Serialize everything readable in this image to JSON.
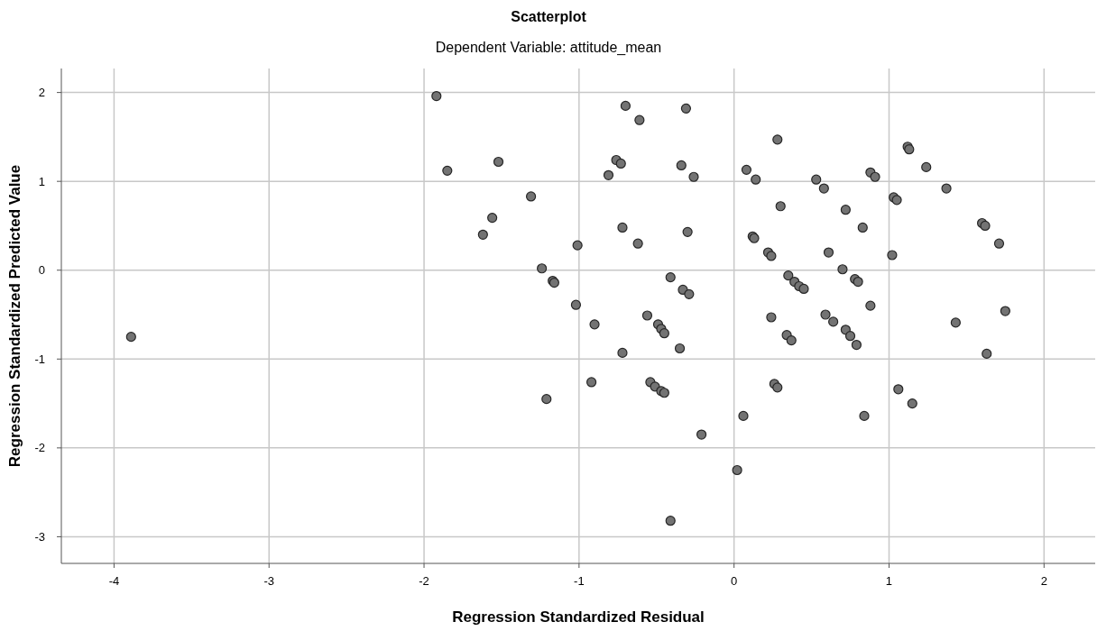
{
  "chart_data": {
    "type": "scatter",
    "title": "Scatterplot",
    "subtitle": "Dependent Variable: attitude_mean",
    "xlabel": "Regression Standardized Residual",
    "ylabel": "Regression Standardized Predicted Value",
    "xlim": [
      -4.34,
      2.33
    ],
    "ylim": [
      -3.3,
      2.27
    ],
    "xticks": [
      -4,
      -3,
      -2,
      -1,
      0,
      1,
      2
    ],
    "yticks": [
      -3,
      -2,
      -1,
      0,
      1,
      2
    ],
    "grid": true,
    "marker": "circle",
    "series": [
      {
        "color": "#737373",
        "x": [
          -3.89,
          -1.92,
          -1.85,
          -1.52,
          -1.56,
          -1.62,
          -1.31,
          -1.24,
          -1.17,
          -1.16,
          -1.21,
          -1.01,
          -1.02,
          -0.9,
          -0.92,
          -0.7,
          -0.61,
          -0.76,
          -0.73,
          -0.81,
          -0.72,
          -0.62,
          -0.72,
          -0.56,
          -0.54,
          -0.51,
          -0.49,
          -0.47,
          -0.45,
          -0.47,
          -0.45,
          -0.41,
          -0.41,
          -0.31,
          -0.34,
          -0.26,
          -0.3,
          -0.33,
          -0.29,
          -0.35,
          -0.21,
          0.02,
          0.06,
          0.08,
          0.14,
          0.12,
          0.13,
          0.24,
          0.26,
          0.28,
          0.22,
          0.24,
          0.28,
          0.3,
          0.35,
          0.34,
          0.37,
          0.39,
          0.42,
          0.45,
          0.53,
          0.58,
          0.61,
          0.59,
          0.64,
          0.72,
          0.75,
          0.72,
          0.7,
          0.78,
          0.8,
          0.79,
          0.83,
          0.84,
          0.88,
          0.88,
          0.91,
          1.02,
          1.03,
          1.05,
          1.06,
          1.12,
          1.13,
          1.15,
          1.24,
          1.37,
          1.43,
          1.6,
          1.62,
          1.63,
          1.71,
          1.75
        ],
        "values": [
          -0.75,
          1.96,
          1.12,
          1.22,
          0.59,
          0.4,
          0.83,
          0.02,
          -0.12,
          -0.14,
          -1.45,
          0.28,
          -0.39,
          -0.61,
          -1.26,
          1.85,
          1.69,
          1.24,
          1.2,
          1.07,
          0.48,
          0.3,
          -0.93,
          -0.51,
          -1.26,
          -1.31,
          -0.61,
          -0.66,
          -0.71,
          -1.36,
          -1.38,
          -2.82,
          -0.08,
          1.82,
          1.18,
          1.05,
          0.43,
          -0.22,
          -0.27,
          -0.88,
          -1.85,
          -2.25,
          -1.64,
          1.13,
          1.02,
          0.38,
          0.36,
          -0.53,
          -1.28,
          -1.32,
          0.2,
          0.16,
          1.47,
          0.72,
          -0.06,
          -0.73,
          -0.79,
          -0.13,
          -0.18,
          -0.21,
          1.02,
          0.92,
          0.2,
          -0.5,
          -0.58,
          -0.67,
          -0.74,
          0.68,
          0.01,
          -0.1,
          -0.13,
          -0.84,
          0.48,
          -1.64,
          -0.4,
          1.1,
          1.05,
          0.17,
          0.82,
          0.79,
          -1.34,
          1.39,
          1.36,
          -1.5,
          1.16,
          0.92,
          -0.59,
          0.53,
          0.5,
          -0.94,
          0.3,
          -0.46
        ]
      }
    ]
  }
}
